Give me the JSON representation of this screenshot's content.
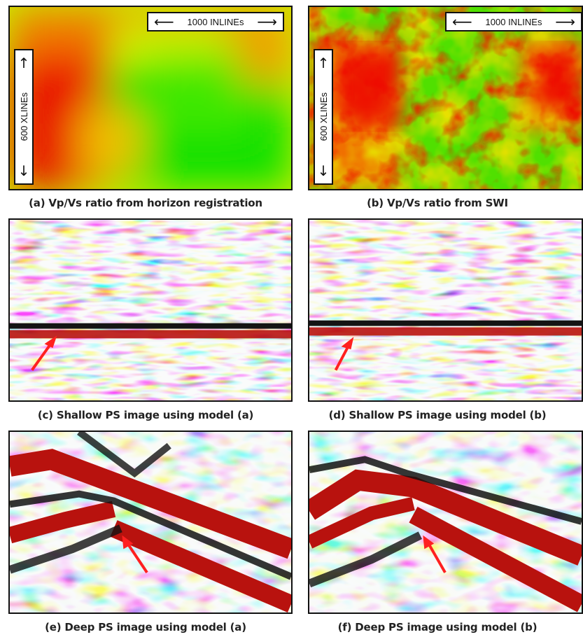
{
  "panels": [
    {
      "id": "a",
      "caption": "(a) Vp/Vs ratio from horizon registration",
      "inline_label": "1000 INLINEs",
      "xline_label": "600 XLINEs"
    },
    {
      "id": "b",
      "caption": "(b) Vp/Vs ratio from SWI",
      "inline_label": "1000 INLINEs",
      "xline_label": "600 XLINEs"
    },
    {
      "id": "c",
      "caption": "(c) Shallow PS image using model (a)"
    },
    {
      "id": "d",
      "caption": "(d) Shallow PS image using model (b)"
    },
    {
      "id": "e",
      "caption": "(e) Deep PS image using model (a)"
    },
    {
      "id": "f",
      "caption": "(f) Deep PS image using model (b)"
    }
  ],
  "colors": {
    "vel_low": "#00e000",
    "vel_mid": "#f0f000",
    "vel_high": "#f00000",
    "seis_pos": "#c0100c",
    "seis_neg": "#111111",
    "seis_zero": "#f4f7f7",
    "annotation_arrow": "#ff2020"
  },
  "icons": {
    "inline_arrows": "left-right-arrow",
    "xline_arrows": "up-down-arrow",
    "annotation": "red-arrow-icon"
  }
}
